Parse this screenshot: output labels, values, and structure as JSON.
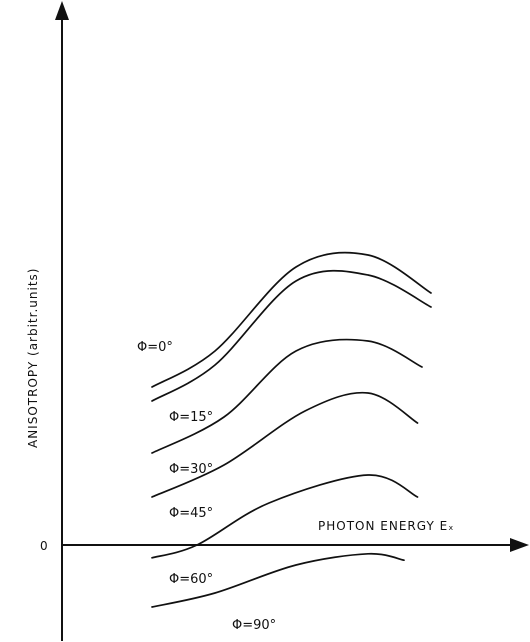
{
  "chart_data": {
    "type": "line",
    "xlabel": "PHOTON ENERGY Eₓ",
    "ylabel": "ANISOTROPY (arbitr.units)",
    "yticks": [
      {
        "value": 0,
        "label": "0"
      }
    ],
    "xlim": [
      0,
      10
    ],
    "ylim": [
      -2.2,
      9.9
    ],
    "grid": false,
    "legend": "none",
    "series": [
      {
        "name": "Φ=0°",
        "x": [
          2.0,
          3.4,
          5.2,
          6.8,
          8.2
        ],
        "y": [
          3.95,
          4.85,
          6.95,
          7.25,
          6.3
        ]
      },
      {
        "name": "Φ=15°",
        "x": [
          2.0,
          3.4,
          5.2,
          6.8,
          8.2
        ],
        "y": [
          3.6,
          4.5,
          6.6,
          6.75,
          5.95
        ]
      },
      {
        "name": "Φ=30°",
        "x": [
          2.0,
          3.6,
          5.2,
          6.8,
          8.0
        ],
        "y": [
          2.3,
          3.2,
          4.85,
          5.1,
          4.45
        ]
      },
      {
        "name": "Φ=45°",
        "x": [
          2.0,
          3.6,
          5.4,
          6.8,
          7.9
        ],
        "y": [
          1.2,
          2.0,
          3.35,
          3.8,
          3.05
        ]
      },
      {
        "name": "Φ=60°",
        "x": [
          2.0,
          3.0,
          4.6,
          6.8,
          7.9
        ],
        "y": [
          -0.32,
          0.0,
          1.05,
          1.75,
          1.2
        ]
      },
      {
        "name": "Φ=90°",
        "x": [
          2.0,
          3.4,
          5.2,
          6.8,
          7.6
        ],
        "y": [
          -1.55,
          -1.2,
          -0.5,
          -0.22,
          -0.38
        ]
      }
    ]
  }
}
